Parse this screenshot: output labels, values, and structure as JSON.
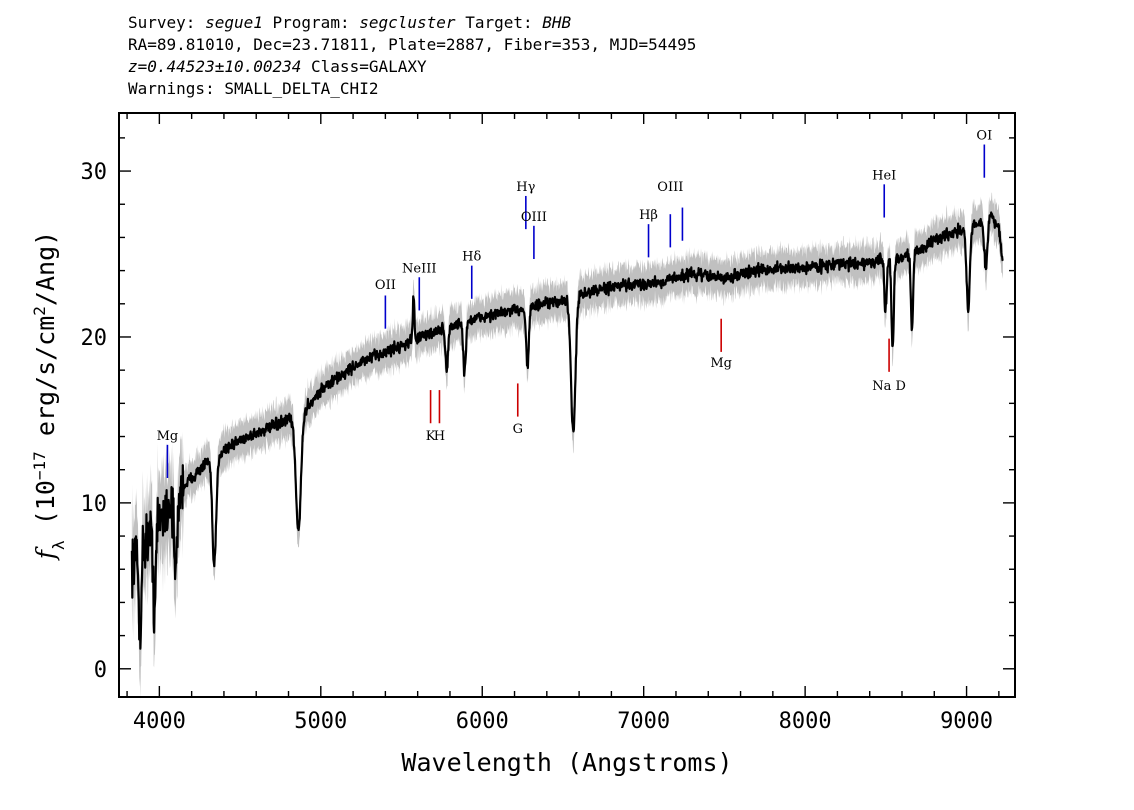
{
  "header": {
    "line1": {
      "survey_label": "Survey:",
      "survey": "segue1",
      "program_label": "Program:",
      "program": "segcluster",
      "target_label": "Target:",
      "target": "BHB"
    },
    "line2": "RA=89.81010, Dec=23.71811, Plate=2887, Fiber=353, MJD=54495",
    "line3": {
      "redshift": "z=0.44523±10.00234",
      "class_text": "Class=GALAXY"
    },
    "line4": "Warnings: SMALL_DELTA_CHI2"
  },
  "chart_data": {
    "type": "line",
    "xlabel": "Wavelength (Angstroms)",
    "ylabel_parts": {
      "f": "f",
      "sub": "λ",
      "pre": " (10",
      "exp1": "−17",
      "mid": " erg/s/cm",
      "exp2": "2",
      "post": "/Ang)"
    },
    "xlim": [
      3750,
      9300
    ],
    "ylim": [
      -1.7,
      33.5
    ],
    "xticks": [
      4000,
      5000,
      6000,
      7000,
      8000,
      9000
    ],
    "yticks": [
      0,
      10,
      20,
      30
    ],
    "colors": {
      "flux": "#000000",
      "error_band": "#c0c0c0",
      "emission": "#0000cc",
      "absorption": "#cc0000"
    },
    "continuum": [
      [
        3830,
        6.5
      ],
      [
        3900,
        7.5
      ],
      [
        4000,
        9.0
      ],
      [
        4100,
        10.5
      ],
      [
        4200,
        11.5
      ],
      [
        4300,
        12.5
      ],
      [
        4400,
        13.2
      ],
      [
        4500,
        13.8
      ],
      [
        4600,
        14.2
      ],
      [
        4700,
        14.6
      ],
      [
        4800,
        15.0
      ],
      [
        4900,
        15.6
      ],
      [
        5000,
        16.8
      ],
      [
        5100,
        17.5
      ],
      [
        5200,
        18.2
      ],
      [
        5300,
        18.7
      ],
      [
        5400,
        19.1
      ],
      [
        5500,
        19.5
      ],
      [
        5600,
        19.9
      ],
      [
        5700,
        20.3
      ],
      [
        5800,
        20.6
      ],
      [
        5900,
        20.9
      ],
      [
        6000,
        21.2
      ],
      [
        6100,
        21.4
      ],
      [
        6200,
        21.6
      ],
      [
        6300,
        21.8
      ],
      [
        6400,
        22.0
      ],
      [
        6500,
        22.2
      ],
      [
        6600,
        22.5
      ],
      [
        6700,
        22.8
      ],
      [
        6800,
        23.0
      ],
      [
        6900,
        23.1
      ],
      [
        7000,
        23.2
      ],
      [
        7100,
        23.3
      ],
      [
        7200,
        23.6
      ],
      [
        7300,
        23.8
      ],
      [
        7400,
        23.7
      ],
      [
        7500,
        23.5
      ],
      [
        7600,
        23.8
      ],
      [
        7700,
        24.0
      ],
      [
        7800,
        24.1
      ],
      [
        7900,
        24.1
      ],
      [
        8000,
        24.2
      ],
      [
        8100,
        24.3
      ],
      [
        8200,
        24.4
      ],
      [
        8300,
        24.4
      ],
      [
        8400,
        24.5
      ],
      [
        8500,
        24.6
      ],
      [
        8600,
        24.8
      ],
      [
        8700,
        25.2
      ],
      [
        8800,
        25.8
      ],
      [
        8900,
        26.3
      ],
      [
        9000,
        26.5
      ],
      [
        9100,
        27.0
      ],
      [
        9150,
        27.5
      ],
      [
        9200,
        26.5
      ],
      [
        9225,
        24.5
      ]
    ],
    "features": [
      {
        "x": 3880,
        "depth": 5.0,
        "width": 8
      },
      {
        "x": 3970,
        "depth": 5.0,
        "width": 8
      },
      {
        "x": 4101,
        "depth": 4.8,
        "width": 10
      },
      {
        "x": 4340,
        "depth": 6.5,
        "width": 12
      },
      {
        "x": 4861,
        "depth": 7.0,
        "width": 16
      },
      {
        "x": 5575,
        "depth": -2.8,
        "width": 5
      },
      {
        "x": 5780,
        "depth": 2.5,
        "width": 8
      },
      {
        "x": 5890,
        "depth": 3.0,
        "width": 8
      },
      {
        "x": 6280,
        "depth": 3.5,
        "width": 8
      },
      {
        "x": 6563,
        "depth": 8.0,
        "width": 14
      },
      {
        "x": 8498,
        "depth": 3.0,
        "width": 7
      },
      {
        "x": 8542,
        "depth": 5.5,
        "width": 7
      },
      {
        "x": 8662,
        "depth": 4.5,
        "width": 7
      },
      {
        "x": 9010,
        "depth": 5.0,
        "width": 10
      },
      {
        "x": 9120,
        "depth": 3.0,
        "width": 10
      }
    ],
    "noise": {
      "amplitude": 0.35,
      "amplitude_blue": 1.6,
      "band_half_width": 1.1
    },
    "line_markers": [
      {
        "label": "Mg",
        "x": 4050,
        "y1": 11.5,
        "y2": 13.5,
        "kind": "emission",
        "label_y": 13.8,
        "label_pos": "above"
      },
      {
        "label": "OII",
        "x": 5400,
        "y1": 20.5,
        "y2": 22.5,
        "kind": "emission",
        "label_y": 22.9,
        "label_pos": "above"
      },
      {
        "label": "NeIII",
        "x": 5610,
        "y1": 21.6,
        "y2": 23.6,
        "kind": "emission",
        "label_y": 23.9,
        "label_pos": "above"
      },
      {
        "label": "Hδ",
        "x": 5935,
        "y1": 22.3,
        "y2": 24.3,
        "kind": "emission",
        "label_y": 24.6,
        "label_pos": "above"
      },
      {
        "label": "Hγ",
        "x": 6270,
        "y1": 26.5,
        "y2": 28.5,
        "kind": "emission",
        "label_y": 28.8,
        "label_pos": "above"
      },
      {
        "label": "OIII",
        "x": 6320,
        "y1": 24.7,
        "y2": 26.7,
        "kind": "emission",
        "label_y": 27.0,
        "label_pos": "above"
      },
      {
        "label": "Hβ",
        "x": 7030,
        "y1": 24.8,
        "y2": 26.8,
        "kind": "emission",
        "label_y": 27.1,
        "label_pos": "above"
      },
      {
        "label": "OIII",
        "x": 7165,
        "y1": 25.4,
        "y2": 27.4,
        "kind": "emission",
        "label_y": 28.8,
        "label_pos": "above"
      },
      {
        "label": "",
        "x": 7240,
        "y1": 25.8,
        "y2": 27.8,
        "kind": "emission",
        "label_y": 0,
        "label_pos": "none"
      },
      {
        "label": "HeI",
        "x": 8490,
        "y1": 27.2,
        "y2": 29.2,
        "kind": "emission",
        "label_y": 29.5,
        "label_pos": "above"
      },
      {
        "label": "OI",
        "x": 9110,
        "y1": 29.6,
        "y2": 31.6,
        "kind": "emission",
        "label_y": 31.9,
        "label_pos": "above"
      },
      {
        "label": "K",
        "x": 5680,
        "y1": 14.8,
        "y2": 16.8,
        "kind": "absorption",
        "label_y": 13.8,
        "label_pos": "below"
      },
      {
        "label": "H",
        "x": 5735,
        "y1": 14.8,
        "y2": 16.8,
        "kind": "absorption",
        "label_y": 13.8,
        "label_pos": "below"
      },
      {
        "label": "G",
        "x": 6220,
        "y1": 15.2,
        "y2": 17.2,
        "kind": "absorption",
        "label_y": 14.2,
        "label_pos": "below"
      },
      {
        "label": "Mg",
        "x": 7480,
        "y1": 19.1,
        "y2": 21.1,
        "kind": "absorption",
        "label_y": 18.2,
        "label_pos": "below"
      },
      {
        "label": "Na D",
        "x": 8520,
        "y1": 17.9,
        "y2": 19.9,
        "kind": "absorption",
        "label_y": 16.8,
        "label_pos": "below"
      }
    ]
  }
}
